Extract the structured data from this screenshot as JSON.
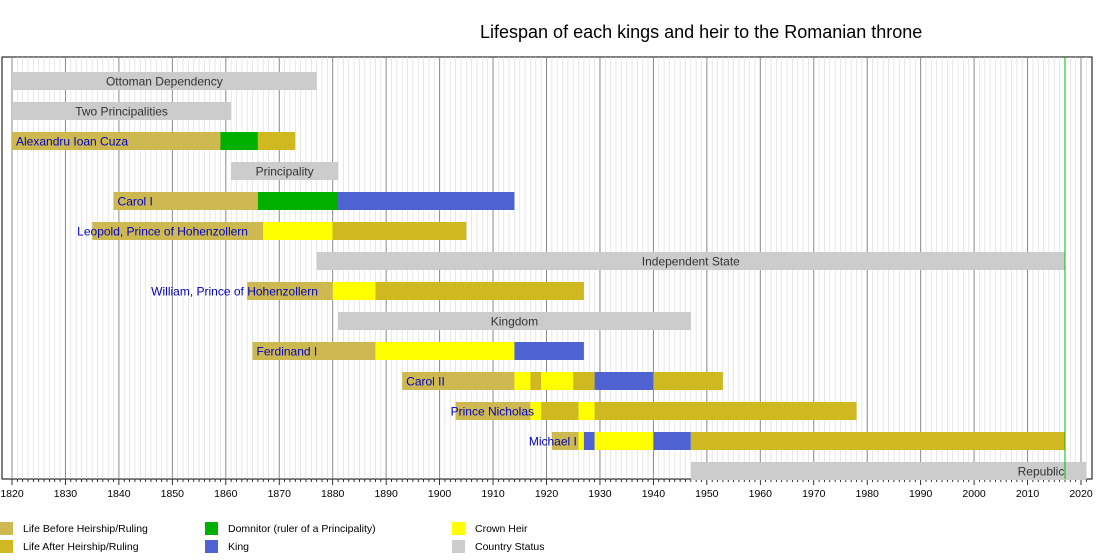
{
  "chart_data": {
    "type": "timeline",
    "title": "Lifespan of each kings and heir to the Romanian throne",
    "xlim": [
      1820,
      2021
    ],
    "x_ticks": [
      1820,
      1830,
      1840,
      1850,
      1860,
      1870,
      1880,
      1890,
      1900,
      1910,
      1920,
      1930,
      1940,
      1950,
      1960,
      1970,
      1980,
      1990,
      2000,
      2010,
      2020
    ],
    "grid": "major every 10 years, minor every year",
    "marker_line_year": 2017,
    "colors": {
      "before": "#cdb94f",
      "after": "#cfb820",
      "domnitor": "#00b000",
      "king": "#4f62d2",
      "heir": "#ffff00",
      "status": "#cccccc",
      "name_text": "#0000c0",
      "marker_line": "#00c000"
    },
    "rows": [
      {
        "label": "Ottoman Dependency",
        "kind": "status",
        "segments": [
          {
            "type": "status",
            "from": 1820,
            "to": 1877
          }
        ]
      },
      {
        "label": "Two Principalities",
        "kind": "status",
        "segments": [
          {
            "type": "status",
            "from": 1820,
            "to": 1861
          }
        ]
      },
      {
        "label": "Alexandru Ioan Cuza",
        "kind": "person",
        "segments": [
          {
            "type": "before",
            "from": 1820,
            "to": 1859
          },
          {
            "type": "domnitor",
            "from": 1859,
            "to": 1866
          },
          {
            "type": "after",
            "from": 1866,
            "to": 1873
          }
        ]
      },
      {
        "label": "Principality",
        "kind": "status",
        "segments": [
          {
            "type": "status",
            "from": 1861,
            "to": 1881
          }
        ]
      },
      {
        "label": "Carol I",
        "kind": "person",
        "segments": [
          {
            "type": "before",
            "from": 1839,
            "to": 1866
          },
          {
            "type": "domnitor",
            "from": 1866,
            "to": 1881
          },
          {
            "type": "king",
            "from": 1881,
            "to": 1914
          }
        ]
      },
      {
        "label": "Leopold, Prince of Hohenzollern",
        "kind": "person",
        "segments": [
          {
            "type": "before",
            "from": 1835,
            "to": 1867
          },
          {
            "type": "heir",
            "from": 1867,
            "to": 1880
          },
          {
            "type": "after",
            "from": 1880,
            "to": 1905
          }
        ]
      },
      {
        "label": "Independent State",
        "kind": "status",
        "segments": [
          {
            "type": "status",
            "from": 1877,
            "to": 2017
          }
        ]
      },
      {
        "label": "William, Prince of Hohenzollern",
        "kind": "person",
        "segments": [
          {
            "type": "before",
            "from": 1864,
            "to": 1880
          },
          {
            "type": "heir",
            "from": 1880,
            "to": 1888
          },
          {
            "type": "after",
            "from": 1888,
            "to": 1927
          }
        ]
      },
      {
        "label": "Kingdom",
        "kind": "status",
        "segments": [
          {
            "type": "status",
            "from": 1881,
            "to": 1947
          }
        ]
      },
      {
        "label": "Ferdinand I",
        "kind": "person",
        "segments": [
          {
            "type": "before",
            "from": 1865,
            "to": 1888
          },
          {
            "type": "heir",
            "from": 1888,
            "to": 1914
          },
          {
            "type": "king",
            "from": 1914,
            "to": 1927
          }
        ]
      },
      {
        "label": "Carol II",
        "kind": "person",
        "segments": [
          {
            "type": "before",
            "from": 1893,
            "to": 1914
          },
          {
            "type": "heir",
            "from": 1914,
            "to": 1917
          },
          {
            "type": "after",
            "from": 1917,
            "to": 1919
          },
          {
            "type": "heir",
            "from": 1919,
            "to": 1925
          },
          {
            "type": "after",
            "from": 1925,
            "to": 1929
          },
          {
            "type": "king",
            "from": 1929,
            "to": 1940
          },
          {
            "type": "after",
            "from": 1940,
            "to": 1953
          }
        ]
      },
      {
        "label": "Prince Nicholas",
        "kind": "person",
        "segments": [
          {
            "type": "before",
            "from": 1903,
            "to": 1917
          },
          {
            "type": "heir",
            "from": 1917,
            "to": 1919
          },
          {
            "type": "after",
            "from": 1919,
            "to": 1926
          },
          {
            "type": "heir",
            "from": 1926,
            "to": 1929
          },
          {
            "type": "after",
            "from": 1929,
            "to": 1978
          }
        ]
      },
      {
        "label": "Michael I",
        "kind": "person",
        "segments": [
          {
            "type": "before",
            "from": 1921,
            "to": 1926
          },
          {
            "type": "heir",
            "from": 1926,
            "to": 1927
          },
          {
            "type": "king",
            "from": 1927,
            "to": 1929
          },
          {
            "type": "heir",
            "from": 1929,
            "to": 1940
          },
          {
            "type": "king",
            "from": 1940,
            "to": 1947
          },
          {
            "type": "after",
            "from": 1947,
            "to": 2017
          }
        ]
      },
      {
        "label": "Republic",
        "kind": "status",
        "segments": [
          {
            "type": "status",
            "from": 1947,
            "to": 2021
          }
        ]
      }
    ],
    "legend": [
      {
        "key": "before",
        "label": "Life Before Heirship/Ruling"
      },
      {
        "key": "after",
        "label": "Life After Heirship/Ruling"
      },
      {
        "key": "domnitor",
        "label": "Domnitor (ruler of a Principality)"
      },
      {
        "key": "king",
        "label": "King"
      },
      {
        "key": "heir",
        "label": "Crown Heir"
      },
      {
        "key": "status",
        "label": "Country Status"
      }
    ]
  }
}
